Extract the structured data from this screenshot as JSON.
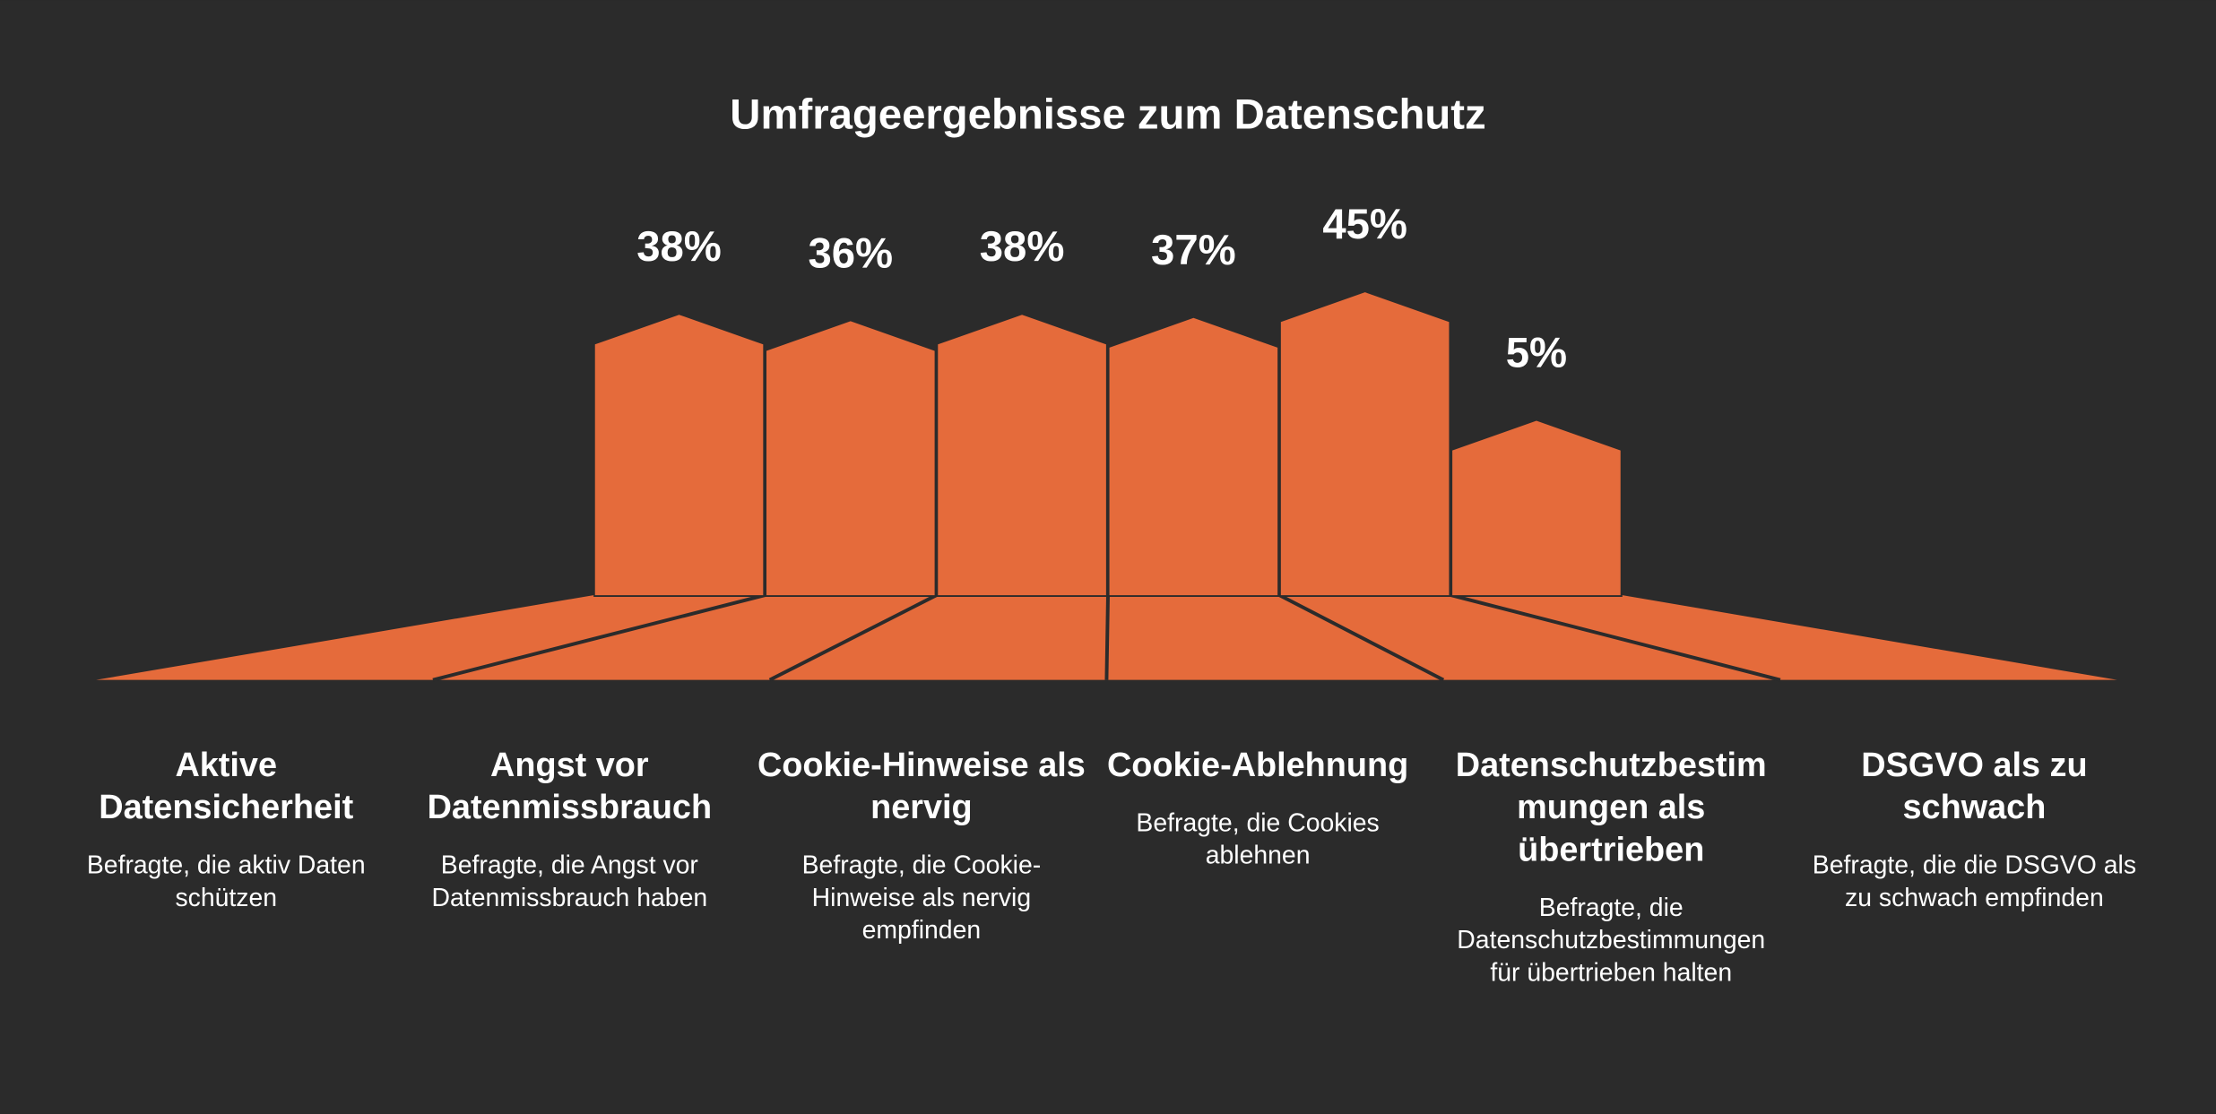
{
  "chart_data": {
    "type": "bar",
    "title": "Umfrageergebnisse zum Datenschutz",
    "categories": [
      "Aktive Datensicherheit",
      "Angst vor Datenmissbrauch",
      "Cookie-Hinweise als nervig",
      "Cookie-Ablehnung",
      "Datenschutzbestimmungen als übertrieben",
      "DSGVO als zu schwach"
    ],
    "descriptions": [
      "Befragte, die aktiv Daten schützen",
      "Befragte, die Angst vor Datenmissbrauch haben",
      "Befragte, die Cookie-Hinweise als nervig empfinden",
      "Befragte, die Cookies ablehnen",
      "Befragte, die Datenschutzbestimmungen für übertrieben halten",
      "Befragte, die die DSGVO als zu schwach empfinden"
    ],
    "values": [
      38,
      36,
      38,
      37,
      45,
      5
    ],
    "value_labels": [
      "38%",
      "36%",
      "38%",
      "37%",
      "45%",
      "5%"
    ],
    "color": "#e56b3b"
  }
}
